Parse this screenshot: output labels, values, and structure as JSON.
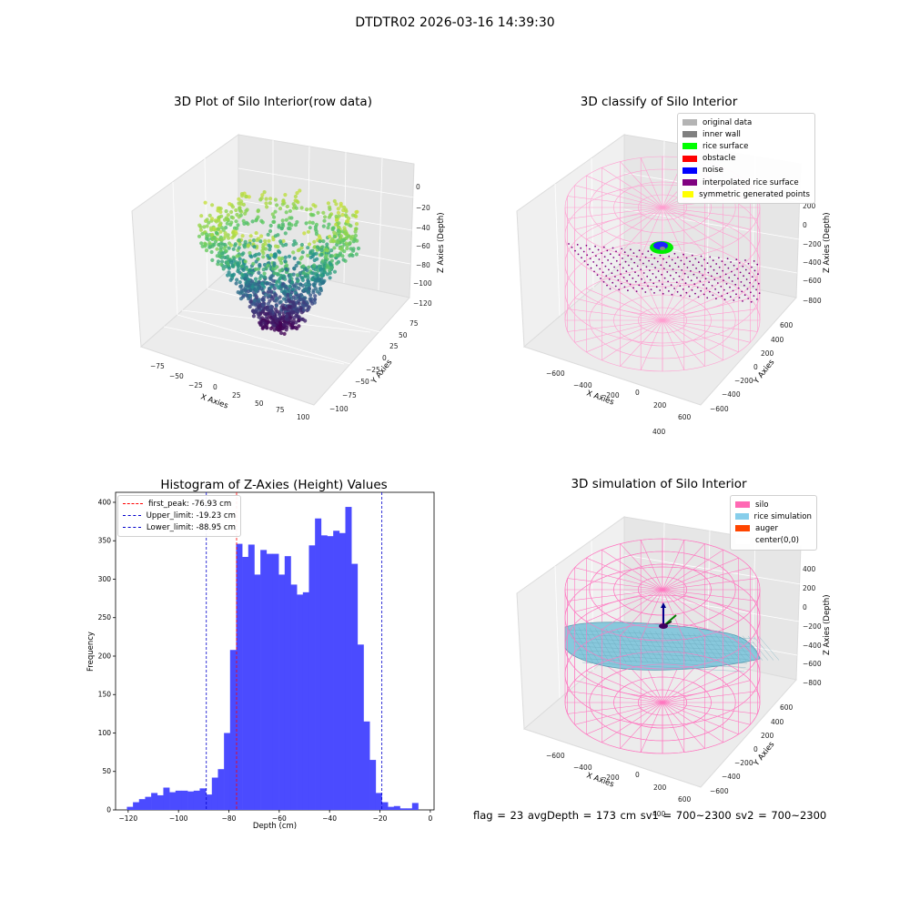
{
  "suptitle": "DTDTR02 2026-03-16 14:39:30",
  "footer": "flag = 23  avgDepth = 173 cm  sv1 = 700~2300  sv2 = 700~2300",
  "panels": {
    "raw": {
      "title": "3D Plot of Silo Interior(row data)",
      "xlabel": "X Axies",
      "ylabel": "Y Axies",
      "zlabel": "Z Axies (Depth)",
      "xticks": [
        "−75",
        "−50",
        "−25",
        "0",
        "25",
        "50",
        "75",
        "100"
      ],
      "yticks": [
        "−100",
        "−75",
        "−50",
        "−25",
        "0",
        "25",
        "50",
        "75"
      ],
      "zticks": [
        "0",
        "−20",
        "−40",
        "−60",
        "−80",
        "−100",
        "−120"
      ]
    },
    "classify": {
      "title": "3D classify of Silo Interior",
      "xlabel": "X Axies",
      "ylabel": "Y Axies",
      "zlabel": "Z Axies (Depth)",
      "xticks": [
        "−600",
        "−400",
        "−200",
        "0",
        "200",
        "400",
        "600"
      ],
      "yticks": [
        "−600",
        "−400",
        "−200",
        "0",
        "200",
        "400",
        "600"
      ],
      "zticks": [
        "200",
        "0",
        "−200",
        "−400",
        "−600",
        "−800"
      ],
      "legend": [
        {
          "label": "original data",
          "color": "#b4b4b4"
        },
        {
          "label": "inner wall",
          "color": "#808080"
        },
        {
          "label": "rice surface",
          "color": "#00ff00"
        },
        {
          "label": "obstacle",
          "color": "#ff0000"
        },
        {
          "label": "noise",
          "color": "#0000ff"
        },
        {
          "label": "interpolated rice surface",
          "color": "#800080"
        },
        {
          "label": "symmetric generated points",
          "color": "#ffff00"
        }
      ]
    },
    "simulation": {
      "title": "3D simulation of Silo Interior",
      "xlabel": "X Axies",
      "ylabel": "Y Axies",
      "zlabel": "Z Axies (Depth)",
      "xticks": [
        "−600",
        "−400",
        "−200",
        "0",
        "200",
        "400",
        "600"
      ],
      "yticks": [
        "−600",
        "−400",
        "−200",
        "0",
        "200",
        "400",
        "600"
      ],
      "zticks": [
        "400",
        "200",
        "0",
        "−200",
        "−400",
        "−600",
        "−800"
      ],
      "legend": [
        {
          "label": "silo",
          "color": "#ff69b4"
        },
        {
          "label": "rice simulation",
          "color": "#87ceeb"
        },
        {
          "label": "auger",
          "color": "#ff4500"
        },
        {
          "label": "center(0,0)",
          "color": "#ffffff"
        }
      ]
    }
  },
  "chart_data": [
    {
      "type": "bar",
      "title": "Histogram of Z-Axies (Height) Values",
      "xlabel": "Depth (cm)",
      "ylabel": "Frequency",
      "xlim": [
        -125,
        1.5
      ],
      "ylim": [
        0,
        413
      ],
      "xticks": [
        -120,
        -100,
        -80,
        -60,
        -40,
        -20,
        0
      ],
      "yticks": [
        0,
        50,
        100,
        150,
        200,
        250,
        300,
        350,
        400
      ],
      "bar_color": "#4b4bff",
      "bin_start": -120.5,
      "bin_width": 2.41,
      "values": [
        4,
        10,
        14,
        17,
        22,
        19,
        29,
        23,
        25,
        25,
        24,
        25,
        28,
        20,
        42,
        53,
        100,
        208,
        346,
        329,
        345,
        306,
        338,
        333,
        333,
        306,
        330,
        293,
        280,
        283,
        344,
        379,
        357,
        356,
        363,
        360,
        394,
        320,
        215,
        115,
        65,
        22,
        10,
        4,
        5,
        2,
        2,
        9
      ],
      "lines": [
        {
          "label": "first_peak: -76.93 cm",
          "x": -76.93,
          "color": "#ff0000"
        },
        {
          "label": "Upper_limit: -19.23 cm",
          "x": -19.23,
          "color": "#0000cc"
        },
        {
          "label": "Lower_limit: -88.95 cm",
          "x": -88.95,
          "color": "#0000cc"
        }
      ],
      "legend_position": "upper-left"
    }
  ]
}
